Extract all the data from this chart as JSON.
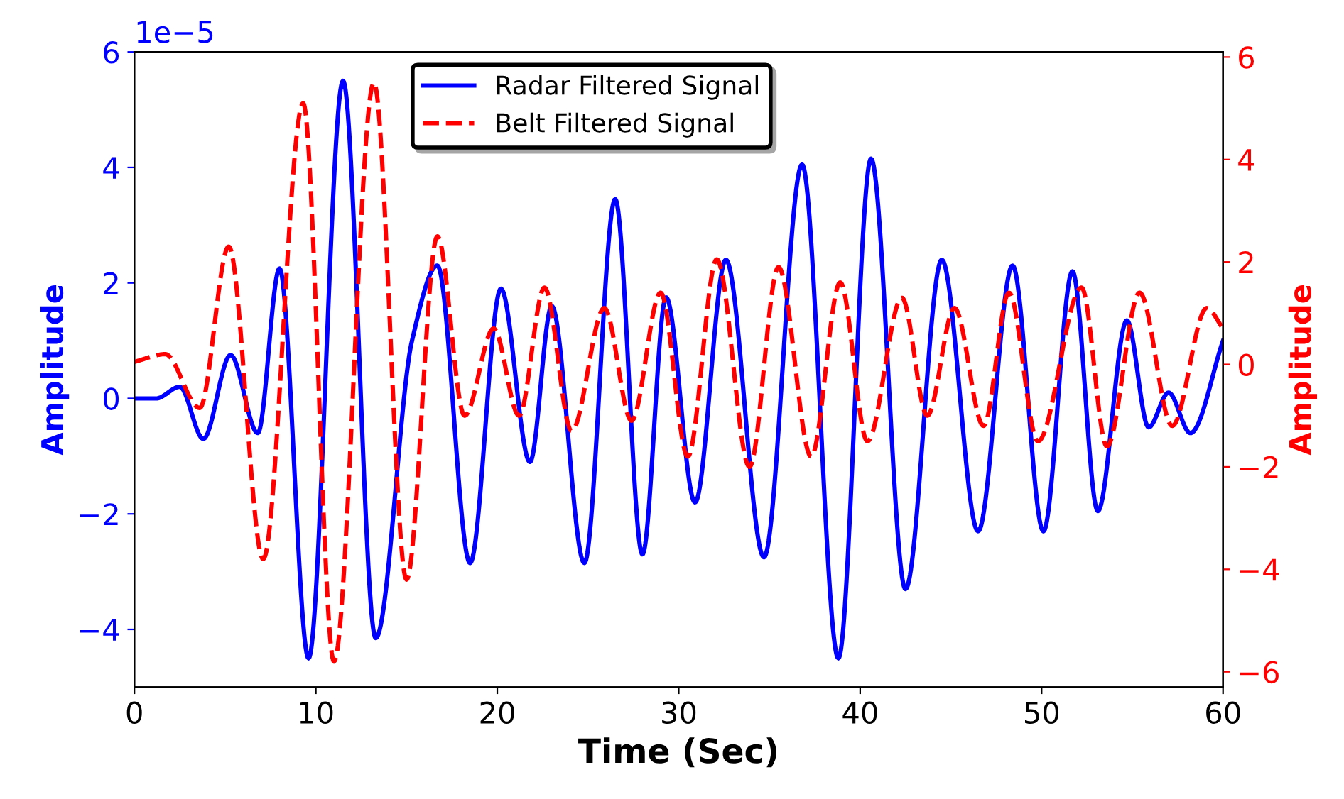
{
  "chart_data": {
    "type": "line",
    "xlabel": "Time (Sec)",
    "ylabel": "Amplitude",
    "y2label": "Amplitude",
    "xlim": [
      0,
      60
    ],
    "xticks": [
      0,
      10,
      20,
      30,
      40,
      50,
      60
    ],
    "ylim": [
      -5,
      6
    ],
    "yticks": [
      -4,
      -2,
      0,
      2,
      4,
      6
    ],
    "y2lim": [
      -6.3,
      6.1
    ],
    "y2ticks": [
      -6,
      -4,
      -2,
      0,
      2,
      4,
      6
    ],
    "annotations": [
      "1e−5"
    ],
    "legend": "top",
    "grid": false,
    "series": [
      {
        "name": "Radar Filtered Signal",
        "color": "#0000ff",
        "line_style": "solid",
        "x": [
          0,
          1.2,
          2.5,
          3.8,
          5.3,
          6.8,
          8.0,
          9.6,
          11.5,
          13.3,
          15.3,
          16.7,
          18.5,
          20.2,
          21.8,
          23.0,
          24.8,
          26.5,
          28.0,
          29.3,
          30.9,
          32.6,
          34.7,
          36.8,
          38.8,
          40.6,
          42.5,
          44.5,
          46.5,
          48.4,
          50.1,
          51.7,
          53.1,
          54.7,
          55.9,
          57.0,
          58.2,
          60
        ],
        "values": [
          0,
          0.0,
          0.2,
          -0.7,
          0.75,
          -0.6,
          2.25,
          -4.5,
          5.5,
          -4.15,
          1.0,
          2.3,
          -2.85,
          1.9,
          -1.1,
          1.6,
          -2.85,
          3.45,
          -2.7,
          1.75,
          -1.8,
          2.4,
          -2.75,
          4.05,
          -4.5,
          4.15,
          -3.3,
          2.4,
          -2.3,
          2.3,
          -2.3,
          2.2,
          -1.95,
          1.35,
          -0.5,
          0.1,
          -0.6,
          1.0
        ]
      },
      {
        "name": "Belt Filtered Signal",
        "color": "#ff0000",
        "axis": "y2",
        "line_style": "dashed",
        "x": [
          0,
          1.7,
          3.6,
          5.2,
          7.1,
          9.3,
          11.0,
          13.2,
          15.0,
          16.7,
          18.2,
          19.8,
          21.2,
          22.6,
          24.1,
          25.9,
          27.4,
          29.0,
          30.5,
          32.1,
          33.9,
          35.5,
          37.3,
          38.9,
          40.4,
          42.3,
          43.7,
          45.2,
          46.8,
          48.2,
          49.8,
          52.2,
          53.6,
          55.4,
          57.2,
          59.1,
          60
        ],
        "values": [
          0.05,
          0.2,
          -0.85,
          2.3,
          -3.8,
          5.1,
          -5.8,
          5.5,
          -4.2,
          2.5,
          -1.0,
          0.7,
          -1.0,
          1.5,
          -1.3,
          1.1,
          -1.1,
          1.4,
          -1.8,
          2.05,
          -2.0,
          1.9,
          -1.8,
          1.6,
          -1.5,
          1.3,
          -1.0,
          1.1,
          -1.2,
          1.4,
          -1.5,
          1.5,
          -1.6,
          1.4,
          -1.2,
          1.1,
          0.7
        ]
      }
    ]
  }
}
